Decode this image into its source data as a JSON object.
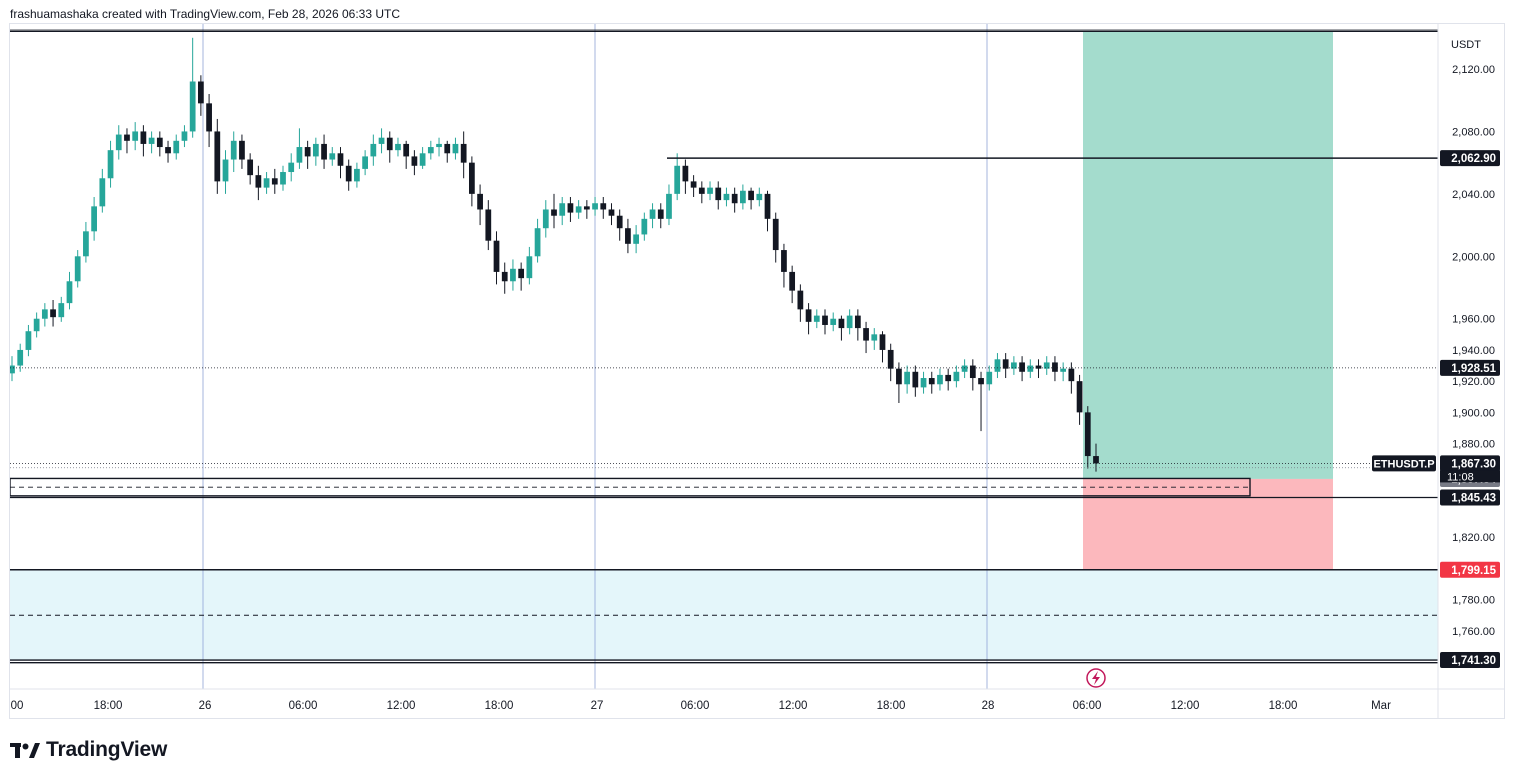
{
  "header": {
    "text": "frashuamashaka created with TradingView.com, Feb 28, 2026 06:33 UTC"
  },
  "brand": {
    "name": "TradingView"
  },
  "chart_data": {
    "type": "candlestick",
    "symbol_label": "ETHUSDT.P",
    "currency": "USDT",
    "countdown": "11:08",
    "ylim": [
      1733,
      2145
    ],
    "y_ticks": [
      "2,120.00",
      "2,080.00",
      "2,040.00",
      "2,000.00",
      "1,960.00",
      "1,940.00",
      "1,920.00",
      "1,900.00",
      "1,880.00",
      "1,820.00",
      "1,780.00",
      "1,760.00"
    ],
    "x_ticks": [
      "00",
      "18:00",
      "26",
      "06:00",
      "12:00",
      "18:00",
      "27",
      "06:00",
      "12:00",
      "18:00",
      "28",
      "06:00",
      "12:00",
      "18:00",
      "Mar"
    ],
    "price_labels": [
      {
        "name": "resistance",
        "value": 2062.9,
        "text": "2,062.90",
        "bg": "#131722",
        "fg": "#ffffff"
      },
      {
        "name": "reference",
        "value": 1928.51,
        "text": "1,928.51",
        "bg": "#131722",
        "fg": "#ffffff"
      },
      {
        "name": "last-price",
        "value": 1867.3,
        "text": "1,867.30",
        "bg": "#131722",
        "fg": "#ffffff"
      },
      {
        "name": "entry",
        "value": 1857.34,
        "text": "1,857.34",
        "bg": "#787b86",
        "fg": "#ffffff"
      },
      {
        "name": "level",
        "value": 1845.43,
        "text": "1,845.43",
        "bg": "#131722",
        "fg": "#ffffff"
      },
      {
        "name": "stop",
        "value": 1799.15,
        "text": "1,799.15",
        "bg": "#f23645",
        "fg": "#ffffff"
      },
      {
        "name": "support",
        "value": 1741.3,
        "text": "1,741.30",
        "bg": "#131722",
        "fg": "#ffffff"
      }
    ],
    "position": {
      "target": 2144,
      "entry": 1857.34,
      "stop": 1799.15,
      "profit_color": "#a4dccd",
      "loss_color": "#fcb8bd"
    },
    "zone": {
      "top": 1799.15,
      "bottom": 1741.3,
      "mid": 1770,
      "color": "#e4f6fa"
    },
    "colors": {
      "up": "#26a69a",
      "down": "#131722"
    },
    "candles": [
      [
        1925,
        1930,
        1920,
        1936
      ],
      [
        1930,
        1940,
        1926,
        1944
      ],
      [
        1940,
        1952,
        1936,
        1956
      ],
      [
        1952,
        1960,
        1948,
        1964
      ],
      [
        1960,
        1966,
        1955,
        1970
      ],
      [
        1966,
        1961,
        1955,
        1972
      ],
      [
        1961,
        1970,
        1958,
        1974
      ],
      [
        1970,
        1984,
        1966,
        1990
      ],
      [
        1984,
        2000,
        1980,
        2004
      ],
      [
        2000,
        2016,
        1996,
        2022
      ],
      [
        2016,
        2032,
        2010,
        2038
      ],
      [
        2032,
        2050,
        2028,
        2056
      ],
      [
        2050,
        2068,
        2044,
        2074
      ],
      [
        2068,
        2078,
        2062,
        2084
      ],
      [
        2078,
        2074,
        2066,
        2082
      ],
      [
        2074,
        2080,
        2068,
        2086
      ],
      [
        2080,
        2072,
        2064,
        2084
      ],
      [
        2072,
        2076,
        2066,
        2080
      ],
      [
        2076,
        2070,
        2064,
        2080
      ],
      [
        2070,
        2066,
        2060,
        2074
      ],
      [
        2066,
        2074,
        2062,
        2078
      ],
      [
        2074,
        2080,
        2070,
        2084
      ],
      [
        2080,
        2112,
        2076,
        2140
      ],
      [
        2112,
        2098,
        2090,
        2116
      ],
      [
        2098,
        2080,
        2070,
        2104
      ],
      [
        2080,
        2048,
        2040,
        2088
      ],
      [
        2048,
        2062,
        2040,
        2068
      ],
      [
        2062,
        2074,
        2054,
        2080
      ],
      [
        2074,
        2062,
        2056,
        2078
      ],
      [
        2062,
        2052,
        2046,
        2066
      ],
      [
        2052,
        2044,
        2036,
        2058
      ],
      [
        2044,
        2050,
        2040,
        2054
      ],
      [
        2050,
        2046,
        2040,
        2056
      ],
      [
        2046,
        2054,
        2042,
        2058
      ],
      [
        2054,
        2060,
        2048,
        2066
      ],
      [
        2060,
        2070,
        2056,
        2082
      ],
      [
        2070,
        2064,
        2056,
        2074
      ],
      [
        2064,
        2072,
        2058,
        2076
      ],
      [
        2072,
        2062,
        2056,
        2078
      ],
      [
        2062,
        2066,
        2058,
        2070
      ],
      [
        2066,
        2058,
        2050,
        2070
      ],
      [
        2058,
        2048,
        2042,
        2062
      ],
      [
        2048,
        2056,
        2044,
        2060
      ],
      [
        2056,
        2064,
        2052,
        2068
      ],
      [
        2064,
        2072,
        2058,
        2078
      ],
      [
        2072,
        2076,
        2066,
        2082
      ],
      [
        2076,
        2068,
        2060,
        2080
      ],
      [
        2068,
        2072,
        2064,
        2076
      ],
      [
        2072,
        2064,
        2056,
        2074
      ],
      [
        2064,
        2058,
        2052,
        2068
      ],
      [
        2058,
        2066,
        2056,
        2070
      ],
      [
        2066,
        2070,
        2062,
        2074
      ],
      [
        2070,
        2072,
        2064,
        2076
      ],
      [
        2072,
        2066,
        2060,
        2074
      ],
      [
        2066,
        2072,
        2062,
        2076
      ],
      [
        2072,
        2060,
        2050,
        2080
      ],
      [
        2060,
        2040,
        2032,
        2064
      ],
      [
        2040,
        2030,
        2020,
        2046
      ],
      [
        2030,
        2010,
        2004,
        2036
      ],
      [
        2010,
        1990,
        1982,
        2016
      ],
      [
        1990,
        1984,
        1976,
        1996
      ],
      [
        1984,
        1992,
        1978,
        1998
      ],
      [
        1992,
        1986,
        1978,
        1996
      ],
      [
        1986,
        2000,
        1982,
        2006
      ],
      [
        2000,
        2018,
        1996,
        2024
      ],
      [
        2018,
        2030,
        2012,
        2036
      ],
      [
        2030,
        2026,
        2018,
        2040
      ],
      [
        2026,
        2034,
        2020,
        2038
      ],
      [
        2034,
        2028,
        2022,
        2038
      ],
      [
        2028,
        2032,
        2024,
        2036
      ],
      [
        2032,
        2030,
        2024,
        2036
      ],
      [
        2030,
        2034,
        2026,
        2038
      ],
      [
        2034,
        2030,
        2024,
        2038
      ],
      [
        2030,
        2026,
        2020,
        2034
      ],
      [
        2026,
        2018,
        2010,
        2030
      ],
      [
        2018,
        2008,
        2002,
        2024
      ],
      [
        2008,
        2014,
        2002,
        2020
      ],
      [
        2014,
        2024,
        2010,
        2028
      ],
      [
        2024,
        2030,
        2018,
        2034
      ],
      [
        2030,
        2024,
        2018,
        2034
      ],
      [
        2024,
        2040,
        2020,
        2046
      ],
      [
        2040,
        2058,
        2036,
        2066
      ],
      [
        2058,
        2048,
        2040,
        2062
      ],
      [
        2048,
        2044,
        2038,
        2052
      ],
      [
        2044,
        2040,
        2034,
        2048
      ],
      [
        2040,
        2044,
        2036,
        2048
      ],
      [
        2044,
        2036,
        2030,
        2048
      ],
      [
        2036,
        2040,
        2032,
        2044
      ],
      [
        2040,
        2034,
        2028,
        2044
      ],
      [
        2034,
        2042,
        2030,
        2046
      ],
      [
        2042,
        2036,
        2030,
        2044
      ],
      [
        2036,
        2040,
        2032,
        2044
      ],
      [
        2040,
        2024,
        2016,
        2042
      ],
      [
        2024,
        2004,
        1996,
        2028
      ],
      [
        2004,
        1990,
        1980,
        2008
      ],
      [
        1990,
        1978,
        1970,
        1994
      ],
      [
        1978,
        1966,
        1958,
        1982
      ],
      [
        1966,
        1958,
        1950,
        1970
      ],
      [
        1958,
        1962,
        1954,
        1966
      ],
      [
        1962,
        1956,
        1950,
        1966
      ],
      [
        1956,
        1960,
        1952,
        1964
      ],
      [
        1960,
        1954,
        1946,
        1962
      ],
      [
        1954,
        1962,
        1950,
        1966
      ],
      [
        1962,
        1954,
        1946,
        1966
      ],
      [
        1954,
        1946,
        1938,
        1958
      ],
      [
        1946,
        1950,
        1940,
        1954
      ],
      [
        1950,
        1940,
        1932,
        1952
      ],
      [
        1940,
        1928,
        1920,
        1944
      ],
      [
        1928,
        1918,
        1906,
        1932
      ],
      [
        1918,
        1926,
        1912,
        1930
      ],
      [
        1926,
        1916,
        1910,
        1930
      ],
      [
        1916,
        1922,
        1912,
        1926
      ],
      [
        1922,
        1918,
        1912,
        1926
      ],
      [
        1918,
        1924,
        1914,
        1928
      ],
      [
        1924,
        1920,
        1914,
        1928
      ],
      [
        1920,
        1926,
        1916,
        1930
      ],
      [
        1926,
        1930,
        1922,
        1934
      ],
      [
        1930,
        1922,
        1914,
        1934
      ],
      [
        1922,
        1918,
        1888,
        1926
      ],
      [
        1918,
        1926,
        1914,
        1930
      ],
      [
        1926,
        1934,
        1922,
        1938
      ],
      [
        1934,
        1928,
        1922,
        1938
      ],
      [
        1928,
        1932,
        1924,
        1936
      ],
      [
        1932,
        1926,
        1920,
        1936
      ],
      [
        1926,
        1930,
        1922,
        1934
      ],
      [
        1930,
        1928,
        1922,
        1934
      ],
      [
        1928,
        1932,
        1924,
        1936
      ],
      [
        1932,
        1926,
        1920,
        1936
      ],
      [
        1926,
        1928,
        1920,
        1932
      ],
      [
        1928,
        1920,
        1912,
        1932
      ],
      [
        1920,
        1900,
        1892,
        1924
      ],
      [
        1900,
        1872,
        1864,
        1904
      ],
      [
        1872,
        1867.3,
        1862,
        1880
      ]
    ]
  }
}
